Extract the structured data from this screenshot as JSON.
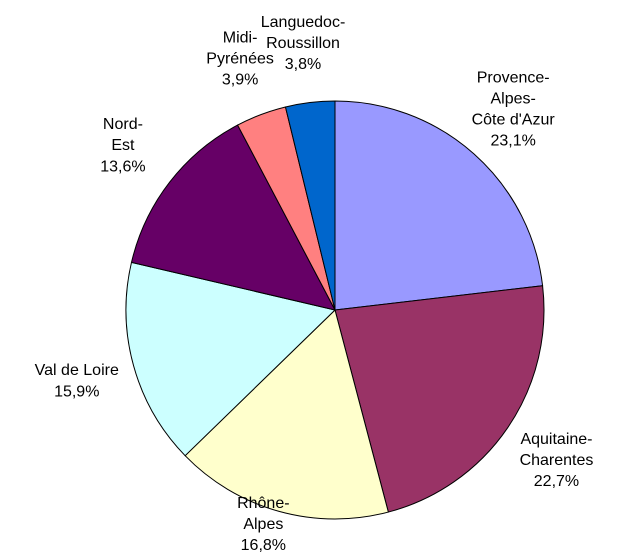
{
  "chart_data": {
    "type": "pie",
    "categories": [
      "Provence-Alpes-Côte d'Azur",
      "Aquitaine-Charentes",
      "Rhône-Alpes",
      "Val de Loire",
      "Nord-Est",
      "Midi-Pyrénées",
      "Languedoc-Roussillon"
    ],
    "values": [
      23.1,
      22.7,
      16.8,
      15.9,
      13.6,
      3.9,
      3.8
    ],
    "value_labels": [
      "23,1%",
      "22,7%",
      "16,8%",
      "15,9%",
      "13,6%",
      "3,9%",
      "3,8%"
    ],
    "colors": [
      "#9999ff",
      "#993366",
      "#ffffcc",
      "#ccffff",
      "#660066",
      "#ff8080",
      "#0066cc"
    ]
  }
}
